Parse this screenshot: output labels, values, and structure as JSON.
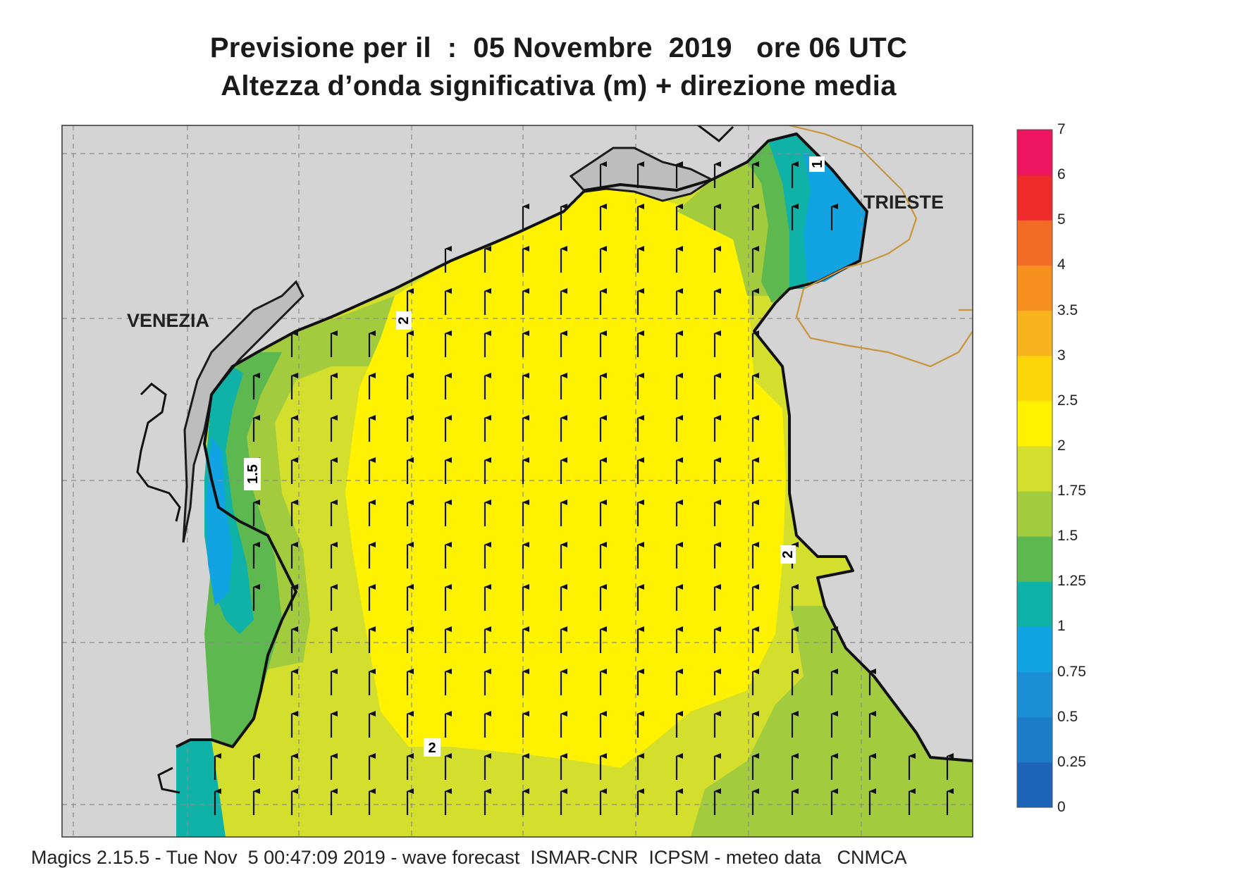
{
  "title_line1": "Previsione per il  :  05 Novembre  2019   ore 06 UTC",
  "title_line2": "Altezza d’onda significativa (m) + direzione media",
  "cities": {
    "venezia": "VENEZIA",
    "trieste": "TRIESTE"
  },
  "contour_labels": [
    "2",
    "1.5",
    "2",
    "2",
    "1"
  ],
  "colorbar": {
    "levels": [
      "0",
      "0.25",
      "0.5",
      "0.75",
      "1",
      "1.25",
      "1.5",
      "1.75",
      "2",
      "2.5",
      "3",
      "3.5",
      "4",
      "5",
      "6",
      "7"
    ],
    "colors": [
      "#1c64b8",
      "#1c7cc8",
      "#1a8fd6",
      "#12a4e2",
      "#10b2a8",
      "#5db84f",
      "#a3cb3e",
      "#d4df2d",
      "#fff200",
      "#fcd609",
      "#f9b41d",
      "#f7901e",
      "#f26c25",
      "#ee2a2a",
      "#ed1460"
    ]
  },
  "wave_direction": "north",
  "footer": "Magics 2.15.5 - Tue Nov  5 00:47:09 2019 - wave forecast  ISMAR-CNR  ICPSM - meteo data   CNMCA"
}
